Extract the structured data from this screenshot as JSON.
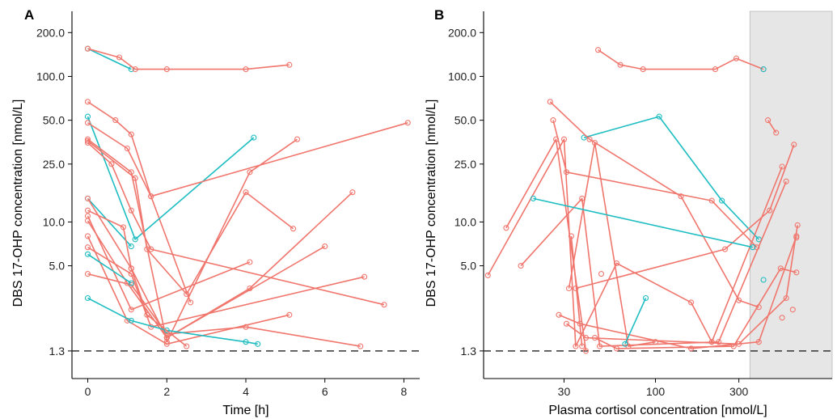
{
  "colors": {
    "responder": "#f0766d",
    "nonresponder": "#1ebdc2",
    "shade": "#e6e6e6",
    "reference": "#333333"
  },
  "chart_data": [
    {
      "type": "line",
      "panel_label": "A",
      "xlabel": "Time [h]",
      "ylabel": "DBS 17-OHP concentration [nmol/L]",
      "x_scale": "linear",
      "y_scale": "log",
      "xlim": [
        -0.4,
        8.4
      ],
      "ylim": [
        0.84,
        280
      ],
      "x_ticks": [
        0,
        2,
        4,
        6,
        8
      ],
      "x_tick_labels": [
        "0",
        "2",
        "4",
        "6",
        "8"
      ],
      "y_ticks": [
        1.3,
        5,
        10,
        25,
        50,
        100,
        200
      ],
      "y_tick_labels": [
        "1.3",
        "5.0",
        "10.0",
        "25.0",
        "50.0",
        "100.0",
        "200.0"
      ],
      "reference_line_y": 1.3,
      "series": [
        {
          "group": "nonresponder",
          "x": [
            0,
            1.1
          ],
          "y": [
            155,
            112
          ]
        },
        {
          "group": "responder",
          "x": [
            0,
            0.8,
            1.2,
            2.0,
            4.0,
            5.1
          ],
          "y": [
            155,
            135,
            112,
            112,
            112,
            120
          ]
        },
        {
          "group": "responder",
          "x": [
            0,
            0.7,
            1.1,
            1.6,
            2.6
          ],
          "y": [
            67,
            50,
            40,
            15,
            2.8
          ]
        },
        {
          "group": "nonresponder",
          "x": [
            0,
            1.2,
            4.2
          ],
          "y": [
            53,
            7.6,
            38
          ]
        },
        {
          "group": "responder",
          "x": [
            0,
            1.0,
            1.6,
            8.1
          ],
          "y": [
            48,
            32,
            15,
            48
          ]
        },
        {
          "group": "responder",
          "x": [
            0,
            1.1,
            2.0,
            4.1,
            5.3
          ],
          "y": [
            37,
            22,
            1.5,
            22,
            37
          ]
        },
        {
          "group": "responder",
          "x": [
            0,
            1.2,
            1.5,
            2.5,
            4.0,
            5.2
          ],
          "y": [
            36,
            20,
            6.5,
            3.2,
            16,
            9
          ]
        },
        {
          "group": "responder",
          "x": [
            0,
            0.6,
            1.1,
            1.6,
            7.5
          ],
          "y": [
            35,
            25,
            12,
            6.5,
            2.7
          ]
        },
        {
          "group": "nonresponder",
          "x": [
            0,
            1.1
          ],
          "y": [
            14.5,
            6.8
          ]
        },
        {
          "group": "responder",
          "x": [
            0,
            0.9,
            1.1,
            2.0,
            4.1,
            6.7
          ],
          "y": [
            12,
            9.2,
            4.8,
            1.6,
            3.5,
            16
          ]
        },
        {
          "group": "responder",
          "x": [
            0,
            1.1,
            4.1
          ],
          "y": [
            11,
            2.5,
            5.3
          ]
        },
        {
          "group": "responder",
          "x": [
            0,
            1.0,
            2.0,
            6.0
          ],
          "y": [
            10.2,
            3.8,
            1.6,
            6.8
          ]
        },
        {
          "group": "responder",
          "x": [
            0,
            1.0,
            2.0,
            5.1
          ],
          "y": [
            8,
            2.1,
            1.45,
            2.3
          ]
        },
        {
          "group": "responder",
          "x": [
            0,
            1.1,
            1.6,
            7.0
          ],
          "y": [
            6.7,
            4.4,
            1.9,
            4.2
          ]
        },
        {
          "group": "responder",
          "x": [
            0,
            1.1,
            2.0,
            4.0,
            6.9
          ],
          "y": [
            4.4,
            3.7,
            1.7,
            1.9,
            1.4
          ]
        },
        {
          "group": "nonresponder",
          "x": [
            0,
            1.1
          ],
          "y": [
            6.0,
            3.8
          ]
        },
        {
          "group": "nonresponder",
          "x": [
            0,
            1.1,
            2.0,
            4.0,
            4.3
          ],
          "y": [
            3.0,
            2.1,
            1.8,
            1.5,
            1.45
          ]
        },
        {
          "group": "responder",
          "x": [
            0,
            1.1,
            1.5,
            2.5
          ],
          "y": [
            14.5,
            4.8,
            2.3,
            1.4
          ]
        }
      ]
    },
    {
      "type": "line",
      "panel_label": "B",
      "xlabel": "Plasma cortisol concentration [nmol/L]",
      "ylabel": "DBS 17-OHP concentration [nmol/L]",
      "x_scale": "log",
      "y_scale": "log",
      "xlim": [
        10.4,
        1025
      ],
      "ylim": [
        0.84,
        280
      ],
      "x_ticks": [
        30,
        100,
        300
      ],
      "x_tick_labels": [
        "30",
        "100",
        "300"
      ],
      "y_ticks": [
        1.3,
        5,
        10,
        25,
        50,
        100,
        200
      ],
      "y_tick_labels": [
        "1.3",
        "5.0",
        "10.0",
        "25.0",
        "50.0",
        "100.0",
        "200.0"
      ],
      "reference_line_y": 1.3,
      "shaded_x_from": 347,
      "series": [
        {
          "group": "responder",
          "x": [
            47,
            63,
            85,
            220,
            290,
            415
          ],
          "y": [
            152,
            120,
            112,
            112,
            133,
            112
          ]
        },
        {
          "group": "nonresponder",
          "x": [
            415
          ],
          "y": [
            112
          ]
        },
        {
          "group": "nonresponder",
          "x": [
            39,
            105,
            240,
            390
          ],
          "y": [
            38,
            53,
            14,
            7.6
          ]
        },
        {
          "group": "responder",
          "x": [
            25,
            42,
            140,
            300,
            390
          ],
          "y": [
            67,
            37,
            15,
            2.9,
            2.6
          ]
        },
        {
          "group": "responder",
          "x": [
            26,
            31,
            210,
            380
          ],
          "y": [
            50,
            22,
            14,
            6.7
          ]
        },
        {
          "group": "responder",
          "x": [
            11,
            30,
            35,
            60,
            160,
            210,
            530
          ],
          "y": [
            4.3,
            37,
            1.4,
            5.2,
            2.8,
            1.5,
            24
          ]
        },
        {
          "group": "responder",
          "x": [
            14,
            27,
            40
          ],
          "y": [
            9.1,
            37,
            1.3
          ]
        },
        {
          "group": "responder",
          "x": [
            32,
            45,
            70,
            100
          ],
          "y": [
            3.5,
            35,
            1.4,
            1.5
          ]
        },
        {
          "group": "responder",
          "x": [
            17,
            38,
            48,
            230,
            560
          ],
          "y": [
            5,
            14.5,
            1.4,
            1.5,
            19
          ]
        },
        {
          "group": "responder",
          "x": [
            35,
            250,
            450,
            620
          ],
          "y": [
            3.5,
            6.5,
            12,
            34
          ]
        },
        {
          "group": "responder",
          "x": [
            33,
            38
          ],
          "y": [
            8,
            1.4
          ]
        },
        {
          "group": "responder",
          "x": [
            28,
            37,
            160,
            390,
            640
          ],
          "y": [
            2.3,
            2.0,
            1.35,
            1.5,
            8
          ]
        },
        {
          "group": "responder",
          "x": [
            31,
            40,
            300,
            560,
            650
          ],
          "y": [
            2.0,
            1.6,
            1.45,
            3.0,
            9.5
          ]
        },
        {
          "group": "responder",
          "x": [
            45,
            60,
            280,
            520,
            640
          ],
          "y": [
            1.6,
            1.35,
            1.4,
            4.8,
            4.5
          ]
        },
        {
          "group": "responder",
          "x": [
            440,
            490
          ],
          "y": [
            50,
            41
          ]
        },
        {
          "group": "responder",
          "x": [
            530
          ],
          "y": [
            2.2
          ]
        },
        {
          "group": "responder",
          "x": [
            610
          ],
          "y": [
            2.5
          ]
        },
        {
          "group": "responder",
          "x": [
            49
          ],
          "y": [
            4.4
          ]
        },
        {
          "group": "responder",
          "x": [
            640
          ],
          "y": [
            7.8
          ]
        },
        {
          "group": "nonresponder",
          "x": [
            20,
            360
          ],
          "y": [
            14.5,
            6.7
          ]
        },
        {
          "group": "nonresponder",
          "x": [
            67,
            88
          ],
          "y": [
            1.45,
            3.0
          ]
        },
        {
          "group": "nonresponder",
          "x": [
            415
          ],
          "y": [
            4.0
          ]
        }
      ]
    }
  ]
}
